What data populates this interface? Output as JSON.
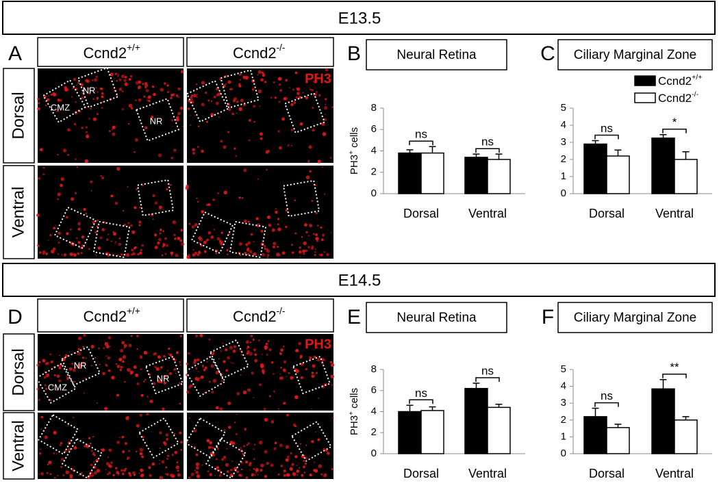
{
  "sections": [
    {
      "stage": "E13.5",
      "image_panel": {
        "letter": "A",
        "columns": [
          {
            "base": "Ccnd2",
            "sup": "+/+"
          },
          {
            "base": "Ccnd2",
            "sup": "-/-"
          }
        ],
        "rows": [
          "Dorsal",
          "Ventral"
        ],
        "stain": "PH3",
        "region_labels": [
          "CMZ",
          "NR",
          "NR"
        ]
      }
    },
    {
      "stage": "E14.5",
      "image_panel": {
        "letter": "D",
        "columns": [
          {
            "base": "Ccnd2",
            "sup": "+/+"
          },
          {
            "base": "Ccnd2",
            "sup": "-/-"
          }
        ],
        "rows": [
          "Dorsal",
          "Ventral"
        ],
        "stain": "PH3",
        "region_labels": [
          "CMZ",
          "NR",
          "NR"
        ]
      }
    }
  ],
  "chart_data": [
    {
      "type": "bar",
      "letter": "B",
      "title": "Neural Retina",
      "ylabel": {
        "base": "PH3",
        "sup": "+",
        "rest": " cells"
      },
      "categories": [
        "Dorsal",
        "Ventral"
      ],
      "series": [
        {
          "color": "#000000",
          "values": [
            3.8,
            3.4
          ],
          "errors": [
            0.3,
            0.3
          ]
        },
        {
          "color": "#ffffff",
          "values": [
            3.8,
            3.2
          ],
          "errors": [
            0.6,
            0.5
          ]
        }
      ],
      "significance": [
        "ns",
        "ns"
      ],
      "ylim": [
        0,
        8
      ],
      "yticks": [
        0,
        2,
        4,
        6,
        8
      ]
    },
    {
      "type": "bar",
      "letter": "C",
      "title": "Ciliary Marginal Zone",
      "categories": [
        "Dorsal",
        "Ventral"
      ],
      "series": [
        {
          "name": "Ccnd2",
          "name_sup": "+/+",
          "color": "#000000",
          "values": [
            2.9,
            3.25
          ],
          "errors": [
            0.2,
            0.2
          ]
        },
        {
          "name": "Ccnd2",
          "name_sup": "-/-",
          "color": "#ffffff",
          "values": [
            2.2,
            2.0
          ],
          "errors": [
            0.35,
            0.45
          ]
        }
      ],
      "significance": [
        "ns",
        "*"
      ],
      "legend": "upper right",
      "ylim": [
        0,
        5
      ],
      "yticks": [
        0,
        1,
        2,
        3,
        4,
        5
      ]
    },
    {
      "type": "bar",
      "letter": "E",
      "title": "Neural Retina",
      "ylabel": {
        "base": "PH3",
        "sup": "+",
        "rest": " cells"
      },
      "categories": [
        "Dorsal",
        "Ventral"
      ],
      "series": [
        {
          "color": "#000000",
          "values": [
            4.0,
            6.2
          ],
          "errors": [
            0.6,
            0.5
          ]
        },
        {
          "color": "#ffffff",
          "values": [
            4.1,
            4.4
          ],
          "errors": [
            0.35,
            0.3
          ]
        }
      ],
      "significance": [
        "ns",
        "ns"
      ],
      "ylim": [
        0,
        8
      ],
      "yticks": [
        0,
        2,
        4,
        6,
        8
      ]
    },
    {
      "type": "bar",
      "letter": "F",
      "title": "Ciliary Marginal Zone",
      "categories": [
        "Dorsal",
        "Ventral"
      ],
      "series": [
        {
          "color": "#000000",
          "values": [
            2.2,
            3.85
          ],
          "errors": [
            0.5,
            0.55
          ]
        },
        {
          "color": "#ffffff",
          "values": [
            1.55,
            2.0
          ],
          "errors": [
            0.2,
            0.2
          ]
        }
      ],
      "significance": [
        "ns",
        "**"
      ],
      "ylim": [
        0,
        5
      ],
      "yticks": [
        0,
        1,
        2,
        3,
        4,
        5
      ]
    }
  ]
}
